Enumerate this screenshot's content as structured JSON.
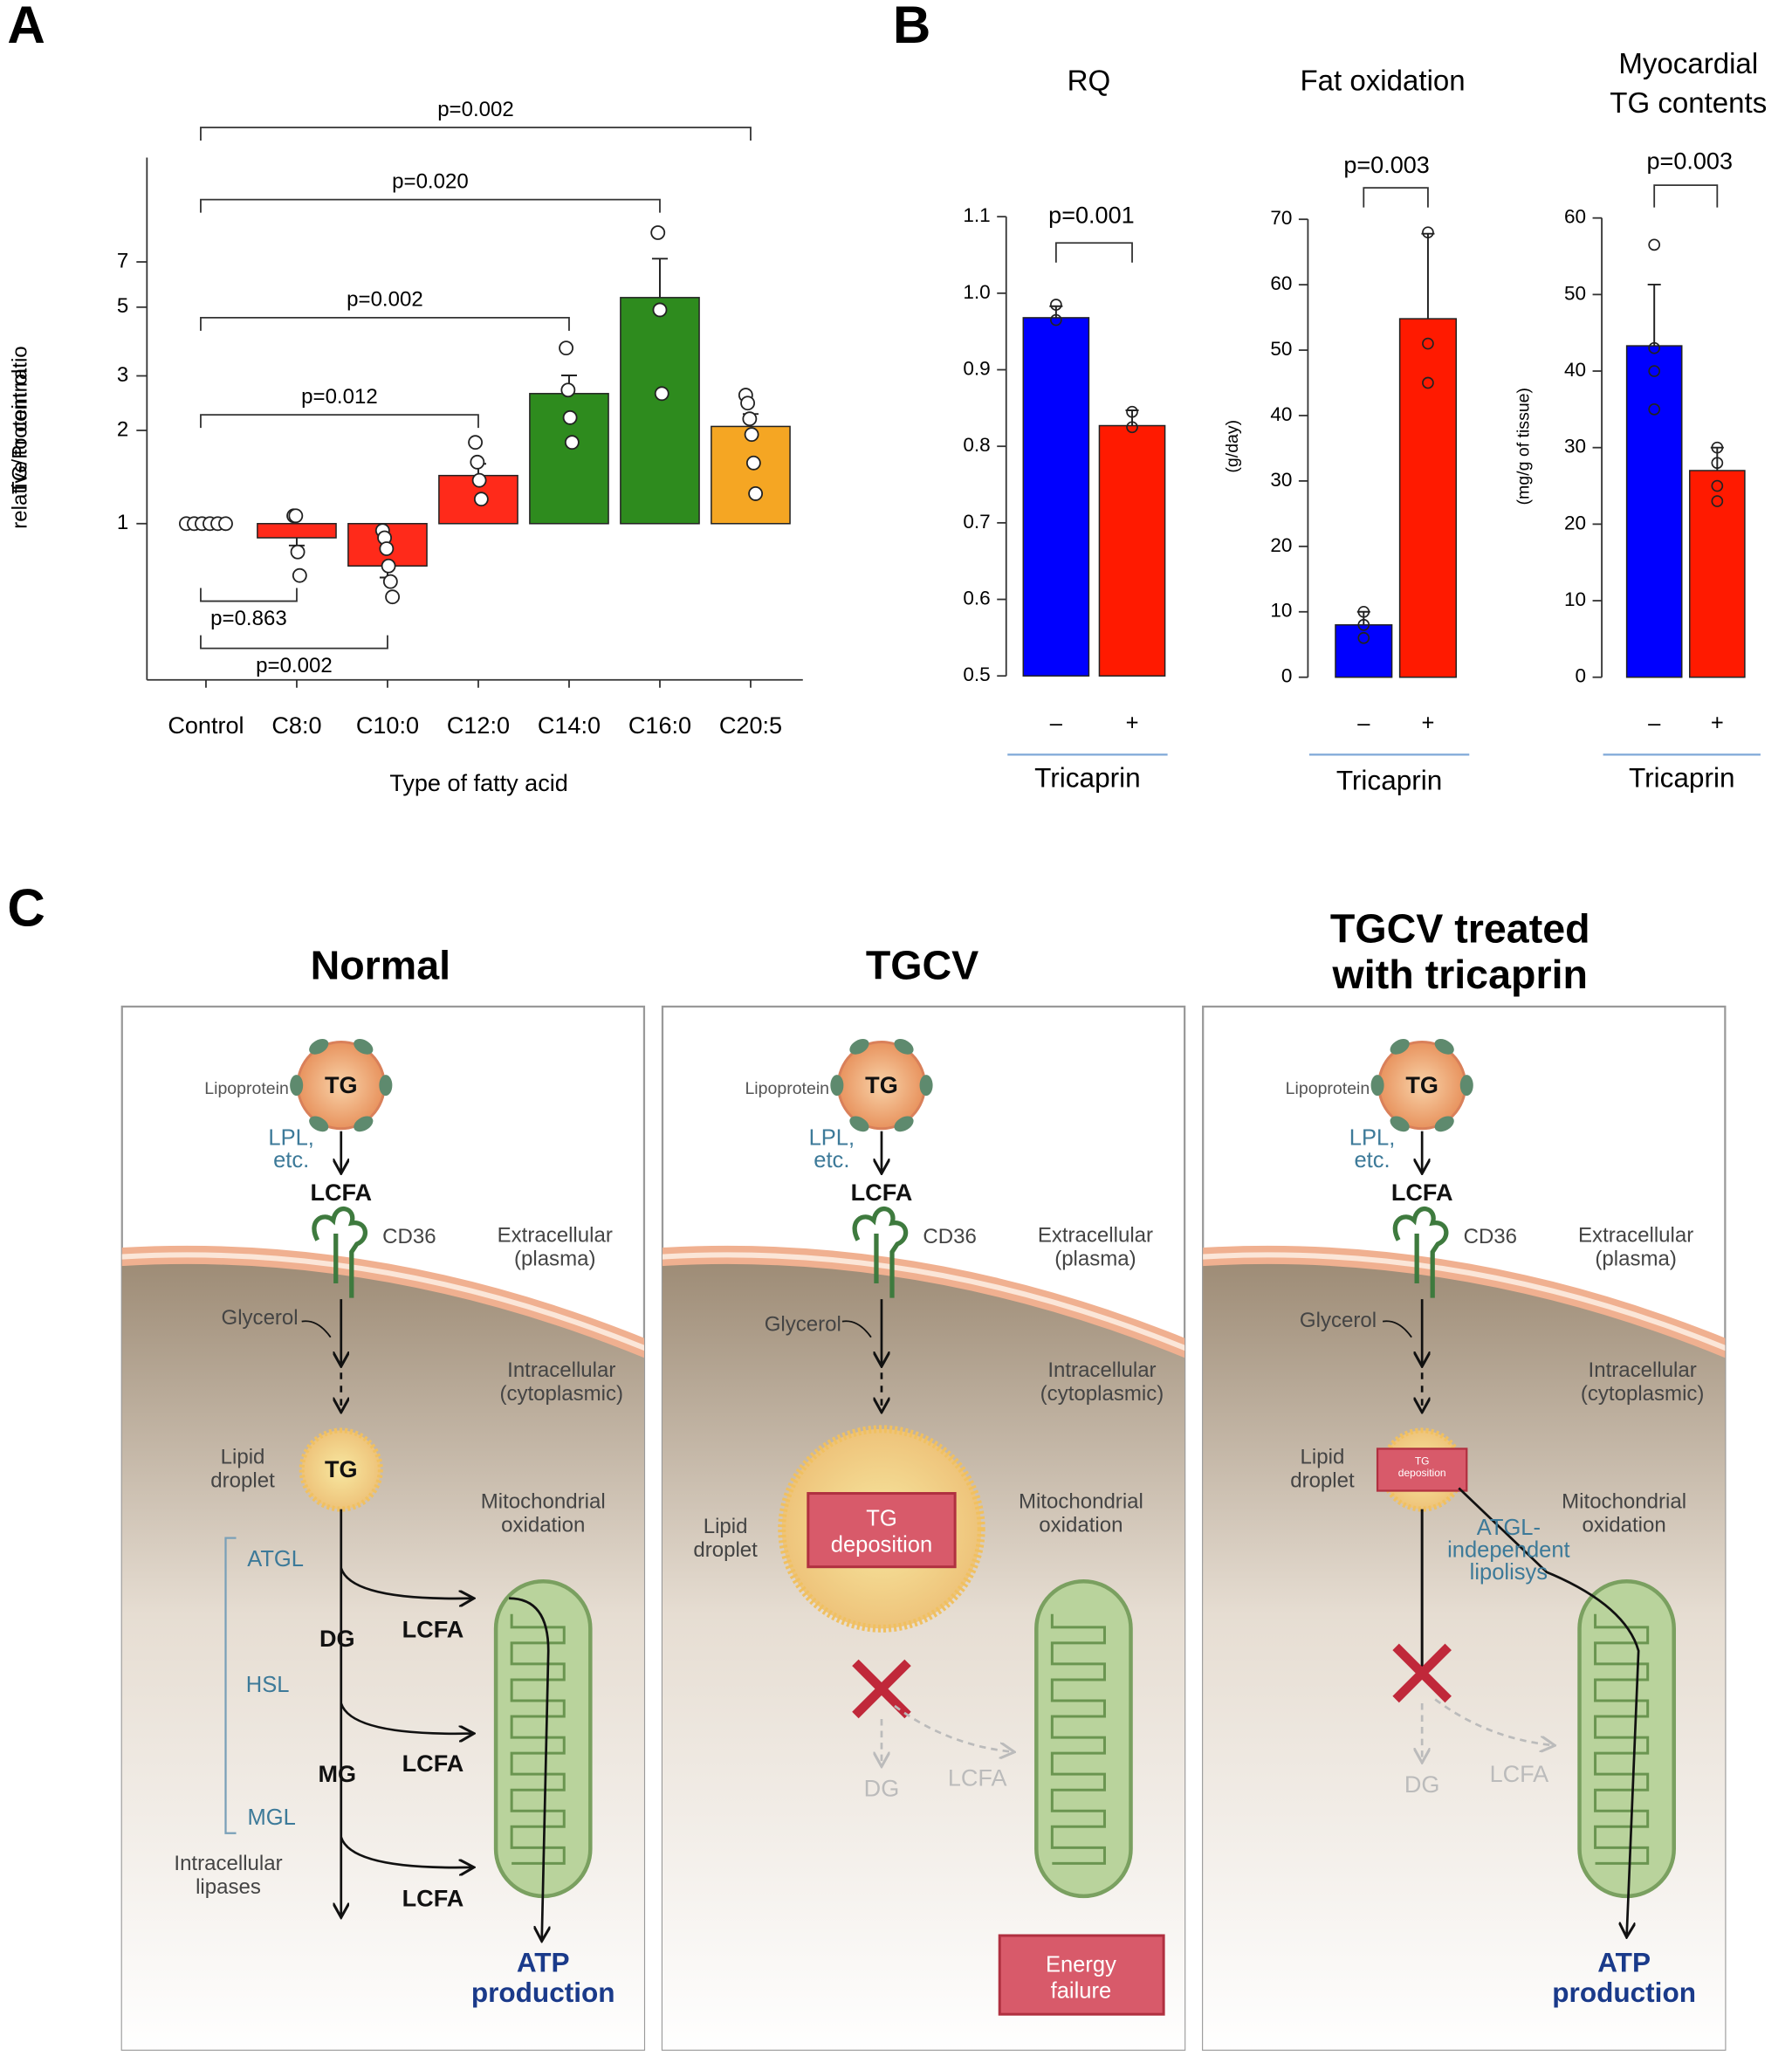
{
  "panel_labels": [
    "A",
    "B",
    "C"
  ],
  "chart_data": [
    {
      "type": "bar",
      "log_scale": true,
      "xlabel": "Type of fatty acid",
      "ylabel": [
        "TG/Protein ratio",
        "relative to control"
      ],
      "categories": [
        "Control",
        "C8:0",
        "C10:0",
        "C12:0",
        "C14:0",
        "C16:0",
        "C20:5"
      ],
      "values": [
        1,
        0.9,
        0.73,
        1.43,
        2.63,
        5.37,
        2.06
      ],
      "errors": [
        0,
        0.05,
        0.06,
        0.13,
        0.38,
        1.8,
        0.2
      ],
      "points": [
        [
          1,
          1,
          1,
          1,
          1,
          1
        ],
        [
          1.06,
          1.06,
          0.81,
          0.68
        ],
        [
          0.95,
          0.9,
          0.83,
          0.73,
          0.65,
          0.58
        ],
        [
          1.83,
          1.58,
          1.38,
          1.2
        ],
        [
          3.69,
          2.7,
          2.2,
          1.83
        ],
        [
          8.7,
          4.9,
          2.63
        ],
        [
          2.6,
          2.45,
          2.18,
          1.94,
          1.57,
          1.25
        ]
      ],
      "colors": [
        null,
        "#ff2a1a",
        "#ff2a1a",
        "#ff2a1a",
        "#2e8b1e",
        "#2e8b1e",
        "#f5a623"
      ],
      "ylim": [
        0.313,
        15.2
      ],
      "yticks": [
        1,
        2,
        3,
        5,
        7
      ],
      "annotations": [
        "p=0.002",
        "p=0.020",
        "p=0.002",
        "p=0.012",
        "p=0.863",
        "p=0.002"
      ]
    },
    {
      "type": "bar",
      "title": "RQ",
      "annotation": "p=0.001",
      "xlabel": "Tricaprin",
      "categories": [
        "–",
        "+"
      ],
      "values": [
        0.968,
        0.827
      ],
      "errors": [
        0.015,
        0.02
      ],
      "points": [
        [
          0.985,
          0.965
        ],
        [
          0.845,
          0.825
        ]
      ],
      "colors": [
        "#0000ff",
        "#ff1a00"
      ],
      "ylim": [
        0.5,
        1.1
      ],
      "yticks": [
        0.5,
        0.6,
        0.7,
        0.8,
        0.9,
        {
          "value": 1,
          "label": "1.0"
        },
        1.1
      ]
    },
    {
      "type": "bar",
      "title": "Fat oxidation",
      "annotation": "p=0.003",
      "xlabel": "Tricaprin",
      "ylabel": "(g/day)",
      "categories": [
        "–",
        "+"
      ],
      "values": [
        8,
        54.8
      ],
      "errors": [
        2,
        13
      ],
      "points": [
        [
          10,
          8,
          6
        ],
        [
          68,
          51,
          45
        ]
      ],
      "colors": [
        "#0000ff",
        "#ff1a00"
      ],
      "ylim": [
        0,
        70
      ],
      "yticks": [
        0,
        10,
        20,
        30,
        40,
        50,
        60,
        70
      ]
    },
    {
      "type": "bar",
      "title": [
        "Myocardial",
        "TG contents"
      ],
      "annotation": "p=0.003",
      "xlabel": "Tricaprin",
      "ylabel": "(mg/g of tissue)",
      "categories": [
        "–",
        "+"
      ],
      "values": [
        43.3,
        27
      ],
      "errors": [
        8,
        3
      ],
      "points": [
        [
          56.5,
          43,
          40,
          35
        ],
        [
          30,
          28,
          25,
          23
        ]
      ],
      "colors": [
        "#0000ff",
        "#ff1a00"
      ],
      "ylim": [
        0,
        60
      ],
      "yticks": [
        0,
        10,
        20,
        30,
        40,
        50,
        60
      ]
    }
  ],
  "diagram": {
    "panels": [
      {
        "title": "Normal",
        "labels": [
          "Lipoprotein",
          "TG",
          [
            "LPL,",
            "etc."
          ],
          "LCFA",
          "CD36",
          [
            "Extracellular",
            "(plasma)"
          ],
          "Glycerol",
          [
            "Intracellular",
            "(cytoplasmic)"
          ],
          [
            "Lipid",
            "droplet"
          ],
          "TG",
          [
            "Mitochondrial",
            "oxidation"
          ],
          "ATGL",
          "DG",
          "LCFA",
          "HSL",
          "MG",
          "LCFA",
          "MGL",
          [
            "Intracellular",
            "lipases"
          ],
          "LCFA",
          [
            "ATP",
            "production"
          ]
        ]
      },
      {
        "title": "TGCV",
        "labels": [
          "Lipoprotein",
          "TG",
          [
            "LPL,",
            "etc."
          ],
          "LCFA",
          "CD36",
          [
            "Extracellular",
            "(plasma)"
          ],
          "Glycerol",
          [
            "Intracellular",
            "(cytoplasmic)"
          ],
          [
            "Lipid",
            "droplet"
          ],
          [
            "TG",
            "deposition"
          ],
          [
            "Mitochondrial",
            "oxidation"
          ],
          "DG",
          "LCFA",
          [
            "Energy",
            "failure"
          ]
        ]
      },
      {
        "title": [
          "TGCV treated",
          "with tricaprin"
        ],
        "labels": [
          "Lipoprotein",
          "TG",
          [
            "LPL,",
            "etc."
          ],
          "LCFA",
          "CD36",
          [
            "Extracellular",
            "(plasma)"
          ],
          "Glycerol",
          [
            "Intracellular",
            "(cytoplasmic)"
          ],
          [
            "Lipid",
            "droplet"
          ],
          [
            "TG",
            "deposition"
          ],
          [
            "Mitochondrial",
            "oxidation"
          ],
          [
            "ATGL-",
            "independent",
            "lipolisys"
          ],
          "DG",
          "LCFA",
          [
            "ATP",
            "production"
          ]
        ]
      }
    ]
  }
}
